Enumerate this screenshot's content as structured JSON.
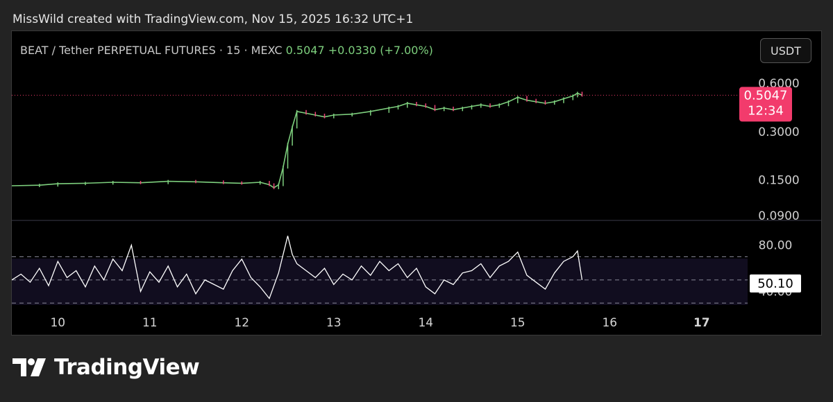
{
  "attribution": "MissWild created with TradingView.com, Nov 15, 2025 16:32 UTC+1",
  "symbol": {
    "name": "BEAT / Tether PERPETUAL FUTURES · 15 · MEXC",
    "last": "0.5047",
    "change": "+0.0330 (+7.00%)"
  },
  "currency_button": "USDT",
  "price_badge": {
    "price": "0.5047",
    "countdown": "12:34"
  },
  "rsi_badge": "50.10",
  "logo_text": "TradingView",
  "colors": {
    "up": "#7ed07e",
    "down": "#f0457a",
    "badge": "#f23b6c",
    "rsi": "#ffffff"
  },
  "chart_data": [
    {
      "type": "line",
      "y_scale": "log",
      "y_ticks": [
        "0.6000",
        "0.3000",
        "0.1500",
        "0.0900"
      ],
      "y_tick_values": [
        0.6,
        0.3,
        0.15,
        0.09
      ],
      "ylim": [
        0.09,
        0.6
      ],
      "current_price": 0.5047,
      "x_ticks": [
        "10",
        "11",
        "12",
        "13",
        "14",
        "15",
        "16",
        "17"
      ],
      "xlim": [
        9.5,
        17.5
      ],
      "series": [
        {
          "x": [
            9.5,
            9.8,
            10.0,
            10.3,
            10.6,
            10.9,
            11.2,
            11.5,
            11.8,
            12.0,
            12.2,
            12.3,
            12.35,
            12.4,
            12.45,
            12.5,
            12.55,
            12.6,
            12.7,
            12.8,
            12.9,
            13.0,
            13.2,
            13.4,
            13.6,
            13.7,
            13.8,
            13.9,
            14.0,
            14.1,
            14.2,
            14.3,
            14.4,
            14.5,
            14.6,
            14.7,
            14.8,
            14.9,
            15.0,
            15.1,
            15.2,
            15.3,
            15.4,
            15.5,
            15.6,
            15.65,
            15.7
          ],
          "y": [
            0.138,
            0.139,
            0.142,
            0.143,
            0.145,
            0.144,
            0.147,
            0.146,
            0.144,
            0.143,
            0.145,
            0.14,
            0.134,
            0.14,
            0.18,
            0.25,
            0.32,
            0.4,
            0.39,
            0.38,
            0.37,
            0.38,
            0.385,
            0.4,
            0.42,
            0.43,
            0.45,
            0.44,
            0.43,
            0.41,
            0.42,
            0.41,
            0.42,
            0.43,
            0.44,
            0.43,
            0.44,
            0.46,
            0.49,
            0.47,
            0.46,
            0.45,
            0.46,
            0.48,
            0.5,
            0.52,
            0.5047
          ]
        }
      ]
    },
    {
      "type": "line",
      "y_ticks": [
        "80.00",
        "40.00"
      ],
      "y_tick_values": [
        80,
        40
      ],
      "levels": [
        70,
        50,
        30
      ],
      "ylim": [
        20,
        90
      ],
      "current_value": 50.1,
      "xlim": [
        9.5,
        17.5
      ],
      "series": [
        {
          "x": [
            9.5,
            9.6,
            9.7,
            9.8,
            9.9,
            10.0,
            10.1,
            10.2,
            10.3,
            10.4,
            10.5,
            10.6,
            10.7,
            10.8,
            10.9,
            11.0,
            11.1,
            11.2,
            11.3,
            11.4,
            11.5,
            11.6,
            11.7,
            11.8,
            11.9,
            12.0,
            12.1,
            12.2,
            12.3,
            12.4,
            12.5,
            12.55,
            12.6,
            12.7,
            12.8,
            12.9,
            13.0,
            13.1,
            13.2,
            13.3,
            13.4,
            13.5,
            13.6,
            13.7,
            13.8,
            13.9,
            14.0,
            14.1,
            14.2,
            14.3,
            14.4,
            14.5,
            14.6,
            14.7,
            14.8,
            14.9,
            15.0,
            15.1,
            15.2,
            15.3,
            15.4,
            15.5,
            15.6,
            15.65,
            15.7
          ],
          "y": [
            50,
            55,
            48,
            60,
            45,
            66,
            52,
            58,
            44,
            62,
            50,
            68,
            58,
            80,
            40,
            57,
            48,
            62,
            44,
            55,
            38,
            50,
            46,
            42,
            58,
            68,
            52,
            44,
            34,
            56,
            88,
            72,
            64,
            58,
            52,
            60,
            46,
            55,
            50,
            62,
            54,
            66,
            58,
            64,
            52,
            60,
            44,
            38,
            50,
            46,
            56,
            58,
            64,
            52,
            62,
            66,
            74,
            54,
            48,
            42,
            56,
            66,
            70,
            75,
            50
          ]
        }
      ]
    }
  ]
}
